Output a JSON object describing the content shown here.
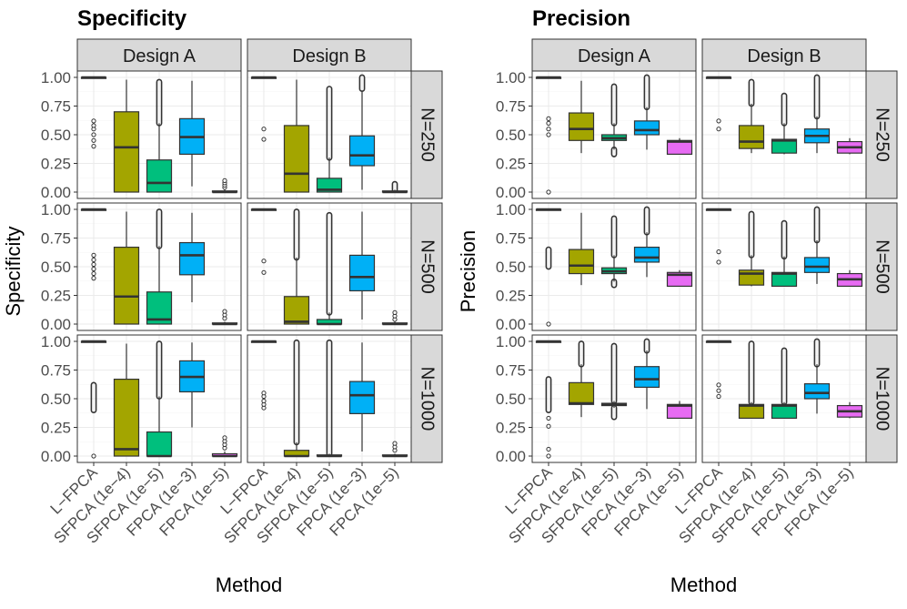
{
  "methods": [
    "L−FPCA",
    "SFPCA (1e−4)",
    "SFPCA (1e−5)",
    "FPCA (1e−3)",
    "FPCA (1e−5)"
  ],
  "method_colors": [
    "#8c8c8c",
    "#a3a500",
    "#00bf7d",
    "#00b0f6",
    "#e76bf3"
  ],
  "x_axis_title": "Method",
  "y_ticks": [
    "0.00",
    "0.25",
    "0.50",
    "0.75",
    "1.00"
  ],
  "designs": [
    "Design A",
    "Design B"
  ],
  "sample_sizes": [
    "N=250",
    "N=500",
    "N=1000"
  ],
  "chart_data": [
    {
      "type": "boxplot",
      "title": "Specificity",
      "ylabel": "Specificity",
      "xlabel": "Method",
      "ylim": [
        0,
        1
      ],
      "panels": [
        [
          [
            {
              "q1": 0.995,
              "med": 1.0,
              "q3": 1.0,
              "lo": 0.995,
              "hi": 1.0,
              "out": [
                0.4,
                0.45,
                0.5,
                0.55,
                0.58,
                0.62
              ]
            },
            {
              "q1": 0.0,
              "med": 0.39,
              "q3": 0.7,
              "lo": 0.0,
              "hi": 0.98,
              "out": []
            },
            {
              "q1": 0.0,
              "med": 0.08,
              "q3": 0.28,
              "lo": 0.0,
              "hi": 0.6,
              "dense": [
                0.6,
                0.96
              ]
            },
            {
              "q1": 0.33,
              "med": 0.48,
              "q3": 0.64,
              "lo": 0.05,
              "hi": 0.97,
              "out": []
            },
            {
              "q1": 0.0,
              "med": 0.0,
              "q3": 0.01,
              "lo": 0.0,
              "hi": 0.02,
              "out": [
                0.04,
                0.06,
                0.08,
                0.1
              ]
            }
          ],
          [
            {
              "q1": 0.995,
              "med": 1.0,
              "q3": 1.0,
              "lo": 0.995,
              "hi": 1.0,
              "out": [
                0.46,
                0.55
              ]
            },
            {
              "q1": 0.0,
              "med": 0.16,
              "q3": 0.58,
              "lo": 0.0,
              "hi": 0.98,
              "out": []
            },
            {
              "q1": 0.0,
              "med": 0.02,
              "q3": 0.12,
              "lo": 0.0,
              "hi": 0.3,
              "dense": [
                0.3,
                0.9
              ]
            },
            {
              "q1": 0.23,
              "med": 0.32,
              "q3": 0.49,
              "lo": 0.02,
              "hi": 0.88,
              "dense": [
                0.9,
                1.0
              ]
            },
            {
              "q1": 0.0,
              "med": 0.0,
              "q3": 0.01,
              "lo": 0.0,
              "hi": 0.02,
              "dense": [
                0.02,
                0.07
              ]
            }
          ]
        ],
        [
          [
            {
              "q1": 0.995,
              "med": 1.0,
              "q3": 1.0,
              "lo": 0.995,
              "hi": 1.0,
              "out": [
                0.4,
                0.44,
                0.48,
                0.52,
                0.56,
                0.6
              ]
            },
            {
              "q1": 0.0,
              "med": 0.24,
              "q3": 0.67,
              "lo": 0.0,
              "hi": 0.98,
              "out": []
            },
            {
              "q1": 0.0,
              "med": 0.04,
              "q3": 0.28,
              "lo": 0.0,
              "hi": 0.68,
              "dense": [
                0.68,
                0.98
              ]
            },
            {
              "q1": 0.43,
              "med": 0.6,
              "q3": 0.71,
              "lo": 0.19,
              "hi": 0.97,
              "out": []
            },
            {
              "q1": 0.0,
              "med": 0.0,
              "q3": 0.01,
              "lo": 0.0,
              "hi": 0.02,
              "out": [
                0.05,
                0.08,
                0.11
              ]
            }
          ],
          [
            {
              "q1": 0.995,
              "med": 1.0,
              "q3": 1.0,
              "lo": 0.995,
              "hi": 1.0,
              "out": [
                0.45,
                0.55
              ]
            },
            {
              "q1": 0.0,
              "med": 0.02,
              "q3": 0.24,
              "lo": 0.0,
              "hi": 0.58,
              "dense": [
                0.58,
                0.98
              ]
            },
            {
              "q1": 0.0,
              "med": 0.0,
              "q3": 0.04,
              "lo": 0.0,
              "hi": 0.1,
              "dense": [
                0.1,
                0.95
              ]
            },
            {
              "q1": 0.29,
              "med": 0.41,
              "q3": 0.6,
              "lo": 0.04,
              "hi": 0.98,
              "out": []
            },
            {
              "q1": 0.0,
              "med": 0.0,
              "q3": 0.01,
              "lo": 0.0,
              "hi": 0.02,
              "out": [
                0.04,
                0.07,
                0.1
              ]
            }
          ]
        ],
        [
          [
            {
              "q1": 0.995,
              "med": 1.0,
              "q3": 1.0,
              "lo": 0.995,
              "hi": 1.0,
              "out": [
                0.0
              ],
              "dense": [
                0.4,
                0.62
              ]
            },
            {
              "q1": 0.0,
              "med": 0.06,
              "q3": 0.67,
              "lo": 0.0,
              "hi": 0.98,
              "out": []
            },
            {
              "q1": 0.0,
              "med": 0.0,
              "q3": 0.21,
              "lo": 0.0,
              "hi": 0.52,
              "dense": [
                0.52,
                0.98
              ]
            },
            {
              "q1": 0.56,
              "med": 0.69,
              "q3": 0.83,
              "lo": 0.25,
              "hi": 0.99,
              "out": []
            },
            {
              "q1": 0.0,
              "med": 0.0,
              "q3": 0.02,
              "lo": 0.0,
              "hi": 0.04,
              "out": [
                0.07,
                0.1,
                0.13,
                0.16
              ]
            }
          ],
          [
            {
              "q1": 0.995,
              "med": 1.0,
              "q3": 1.0,
              "lo": 0.995,
              "hi": 1.0,
              "out": [
                0.42,
                0.45,
                0.48,
                0.52,
                0.55
              ]
            },
            {
              "q1": 0.0,
              "med": 0.0,
              "q3": 0.05,
              "lo": 0.0,
              "hi": 0.12,
              "dense": [
                0.12,
                0.99
              ]
            },
            {
              "q1": 0.0,
              "med": 0.0,
              "q3": 0.01,
              "lo": 0.0,
              "hi": 0.02,
              "dense": [
                0.02,
                0.99
              ]
            },
            {
              "q1": 0.37,
              "med": 0.53,
              "q3": 0.65,
              "lo": 0.04,
              "hi": 0.99,
              "out": []
            },
            {
              "q1": 0.0,
              "med": 0.0,
              "q3": 0.01,
              "lo": 0.0,
              "hi": 0.02,
              "out": [
                0.05,
                0.08,
                0.11
              ]
            }
          ]
        ]
      ]
    },
    {
      "type": "boxplot",
      "title": "Precision",
      "ylabel": "Precision",
      "xlabel": "Method",
      "ylim": [
        0,
        1
      ],
      "panels": [
        [
          [
            {
              "q1": 0.995,
              "med": 1.0,
              "q3": 1.0,
              "lo": 0.995,
              "hi": 1.0,
              "out": [
                0.0,
                0.5,
                0.55,
                0.6,
                0.64
              ]
            },
            {
              "q1": 0.45,
              "med": 0.55,
              "q3": 0.69,
              "lo": 0.34,
              "hi": 0.97,
              "out": []
            },
            {
              "q1": 0.45,
              "med": 0.47,
              "q3": 0.5,
              "lo": 0.37,
              "hi": 0.6,
              "dense": [
                0.6,
                0.92
              ],
              "dense2": [
                0.33,
                0.37
              ]
            },
            {
              "q1": 0.5,
              "med": 0.54,
              "q3": 0.62,
              "lo": 0.37,
              "hi": 0.74,
              "dense": [
                0.74,
                1.0
              ]
            },
            {
              "q1": 0.33,
              "med": 0.44,
              "q3": 0.45,
              "lo": 0.33,
              "hi": 0.47,
              "out": []
            }
          ],
          [
            {
              "q1": 0.995,
              "med": 1.0,
              "q3": 1.0,
              "lo": 0.995,
              "hi": 1.0,
              "out": [
                0.55,
                0.62
              ]
            },
            {
              "q1": 0.38,
              "med": 0.44,
              "q3": 0.58,
              "lo": 0.34,
              "hi": 0.77,
              "dense": [
                0.77,
                0.96
              ]
            },
            {
              "q1": 0.34,
              "med": 0.45,
              "q3": 0.46,
              "lo": 0.33,
              "hi": 0.6,
              "dense": [
                0.6,
                0.84
              ]
            },
            {
              "q1": 0.43,
              "med": 0.49,
              "q3": 0.55,
              "lo": 0.34,
              "hi": 0.66,
              "dense": [
                0.66,
                1.0
              ]
            },
            {
              "q1": 0.34,
              "med": 0.39,
              "q3": 0.44,
              "lo": 0.33,
              "hi": 0.47,
              "out": []
            }
          ]
        ],
        [
          [
            {
              "q1": 0.995,
              "med": 1.0,
              "q3": 1.0,
              "lo": 0.995,
              "hi": 1.0,
              "out": [
                0.0
              ],
              "dense": [
                0.5,
                0.65
              ]
            },
            {
              "q1": 0.44,
              "med": 0.51,
              "q3": 0.65,
              "lo": 0.34,
              "hi": 0.97,
              "out": []
            },
            {
              "q1": 0.44,
              "med": 0.46,
              "q3": 0.49,
              "lo": 0.37,
              "hi": 0.6,
              "dense": [
                0.6,
                0.92
              ],
              "dense2": [
                0.34,
                0.37
              ]
            },
            {
              "q1": 0.54,
              "med": 0.58,
              "q3": 0.67,
              "lo": 0.41,
              "hi": 0.8,
              "dense": [
                0.8,
                1.0
              ]
            },
            {
              "q1": 0.33,
              "med": 0.43,
              "q3": 0.45,
              "lo": 0.33,
              "hi": 0.47,
              "out": []
            }
          ],
          [
            {
              "q1": 0.995,
              "med": 1.0,
              "q3": 1.0,
              "lo": 0.995,
              "hi": 1.0,
              "out": [
                0.54,
                0.63
              ]
            },
            {
              "q1": 0.34,
              "med": 0.44,
              "q3": 0.47,
              "lo": 0.33,
              "hi": 0.6,
              "dense": [
                0.6,
                0.96
              ]
            },
            {
              "q1": 0.33,
              "med": 0.44,
              "q3": 0.45,
              "lo": 0.33,
              "hi": 0.59,
              "dense": [
                0.59,
                0.88
              ]
            },
            {
              "q1": 0.45,
              "med": 0.5,
              "q3": 0.58,
              "lo": 0.35,
              "hi": 0.73,
              "dense": [
                0.73,
                1.0
              ]
            },
            {
              "q1": 0.33,
              "med": 0.39,
              "q3": 0.44,
              "lo": 0.33,
              "hi": 0.47,
              "out": []
            }
          ]
        ],
        [
          [
            {
              "q1": 0.995,
              "med": 1.0,
              "q3": 1.0,
              "lo": 0.995,
              "hi": 1.0,
              "out": [
                0.0,
                0.06,
                0.26,
                0.33
              ],
              "dense": [
                0.4,
                0.67
              ]
            },
            {
              "q1": 0.45,
              "med": 0.46,
              "q3": 0.64,
              "lo": 0.34,
              "hi": 0.8,
              "dense": [
                0.8,
                0.98
              ]
            },
            {
              "q1": 0.44,
              "med": 0.45,
              "q3": 0.46,
              "lo": 0.42,
              "hi": 0.48,
              "dense": [
                0.48,
                0.96
              ],
              "dense2": [
                0.34,
                0.42
              ]
            },
            {
              "q1": 0.6,
              "med": 0.67,
              "q3": 0.78,
              "lo": 0.41,
              "hi": 0.92,
              "dense": [
                0.92,
                1.0
              ]
            },
            {
              "q1": 0.33,
              "med": 0.44,
              "q3": 0.45,
              "lo": 0.33,
              "hi": 0.48,
              "out": []
            }
          ],
          [
            {
              "q1": 0.995,
              "med": 1.0,
              "q3": 1.0,
              "lo": 0.995,
              "hi": 1.0,
              "out": [
                0.52,
                0.57,
                0.62
              ]
            },
            {
              "q1": 0.33,
              "med": 0.44,
              "q3": 0.45,
              "lo": 0.33,
              "hi": 0.47,
              "dense": [
                0.47,
                0.98
              ]
            },
            {
              "q1": 0.33,
              "med": 0.44,
              "q3": 0.45,
              "lo": 0.33,
              "hi": 0.47,
              "dense": [
                0.47,
                0.92
              ]
            },
            {
              "q1": 0.5,
              "med": 0.55,
              "q3": 0.63,
              "lo": 0.37,
              "hi": 0.8,
              "dense": [
                0.8,
                1.0
              ]
            },
            {
              "q1": 0.34,
              "med": 0.39,
              "q3": 0.44,
              "lo": 0.33,
              "hi": 0.47,
              "out": []
            }
          ]
        ]
      ]
    }
  ]
}
